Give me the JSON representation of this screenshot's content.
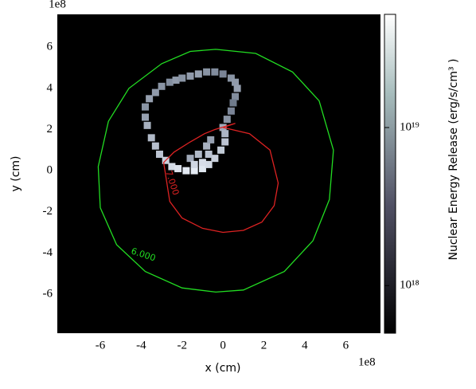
{
  "chart_data": {
    "type": "heatmap",
    "xlabel": "x (cm)",
    "ylabel": "y (cm)",
    "x_offset": "1e8",
    "y_offset": "1e8",
    "xlim": [
      -8.1,
      7.7
    ],
    "ylim": [
      -7.9,
      7.6
    ],
    "xticks": [
      -6,
      -4,
      -2,
      0,
      2,
      4,
      6
    ],
    "yticks": [
      -6,
      -4,
      -2,
      0,
      2,
      4,
      6
    ],
    "cells": {
      "x": [
        -3.8,
        -3.6,
        -3.3,
        -3.0,
        -2.6,
        -2.3,
        -2.0,
        -1.6,
        -1.2,
        -0.8,
        -0.4,
        0.0,
        0.4,
        0.6,
        0.7,
        0.6,
        0.5,
        0.4,
        0.2,
        0.0,
        -3.8,
        -3.7,
        -3.5,
        -3.3,
        -3.1,
        -2.8,
        -2.5,
        -2.2,
        -1.8,
        -1.4,
        -1.0,
        -0.7,
        -0.4,
        -0.1,
        0.1,
        0.1,
        -1.6,
        -1.2,
        -0.8,
        -0.6,
        -1.4,
        -1.0,
        -0.7
      ],
      "y": [
        3.1,
        3.5,
        3.8,
        4.1,
        4.3,
        4.4,
        4.5,
        4.6,
        4.7,
        4.8,
        4.8,
        4.7,
        4.5,
        4.3,
        4.0,
        3.6,
        3.3,
        2.9,
        2.5,
        2.1,
        2.6,
        2.2,
        1.6,
        1.2,
        0.8,
        0.5,
        0.2,
        0.1,
        0.0,
        0.0,
        0.1,
        0.3,
        0.6,
        1.0,
        1.4,
        1.8,
        0.6,
        0.8,
        1.2,
        1.5,
        0.3,
        0.4,
        0.8
      ],
      "values": [
        8e+18,
        1e+19,
        9e+18,
        8e+18,
        7e+18,
        9e+18,
        8e+18,
        9e+18,
        1e+19,
        8e+18,
        7e+18,
        6e+18,
        8e+18,
        9e+18,
        1e+19,
        7e+18,
        5e+18,
        6e+18,
        8e+18,
        1.2e+19,
        1e+19,
        1.4e+19,
        1.6e+19,
        1.8e+19,
        2e+19,
        2.5e+19,
        3e+19,
        3.5e+19,
        4e+19,
        4.2e+19,
        3.8e+19,
        3e+19,
        2.5e+19,
        2.2e+19,
        2e+19,
        1.5e+19,
        1.2e+19,
        1.6e+19,
        1.4e+19,
        1e+19,
        2.8e+19,
        3.2e+19,
        2e+19
      ]
    },
    "colorbar": {
      "label": "Nuclear Energy Release (erg/s/cm³ )",
      "log": true,
      "clim": [
        5e+17,
        5.2e+19
      ],
      "ticks": [
        {
          "value": 1e+18,
          "label": "10¹⁸"
        },
        {
          "value": 1e+19,
          "label": "10¹⁹"
        }
      ]
    },
    "contours": [
      {
        "label": "6.000",
        "color": "#22dd22",
        "x": [
          -0.35,
          1.6,
          3.4,
          4.7,
          5.4,
          5.2,
          4.4,
          3.0,
          1.0,
          -0.35,
          -2.0,
          -3.8,
          -5.2,
          -6.0,
          -6.1,
          -5.6,
          -4.6,
          -3.0,
          -1.6,
          -0.35
        ],
        "y": [
          5.9,
          5.7,
          4.8,
          3.4,
          1.0,
          -1.4,
          -3.4,
          -4.9,
          -5.8,
          -5.9,
          -5.7,
          -4.9,
          -3.6,
          -1.8,
          0.2,
          2.4,
          4.0,
          5.2,
          5.8,
          5.9
        ]
      },
      {
        "label": "7.000",
        "color": "#dd2222",
        "x": [
          0.0,
          1.3,
          2.3,
          2.7,
          2.5,
          1.9,
          1.0,
          0.0,
          -1.0,
          -2.0,
          -2.6,
          -2.9,
          -2.4,
          -1.6,
          -0.9,
          -0.4,
          0.6,
          0.0
        ],
        "y": [
          2.1,
          1.8,
          1.0,
          -0.6,
          -1.7,
          -2.5,
          -2.9,
          -3.0,
          -2.8,
          -2.3,
          -1.5,
          0.4,
          0.9,
          1.4,
          1.8,
          2.0,
          2.3,
          2.1
        ]
      }
    ],
    "contour_label_at": [
      [
        -3.9,
        -4.1,
        18
      ],
      [
        -2.5,
        -0.6,
        72
      ]
    ]
  }
}
